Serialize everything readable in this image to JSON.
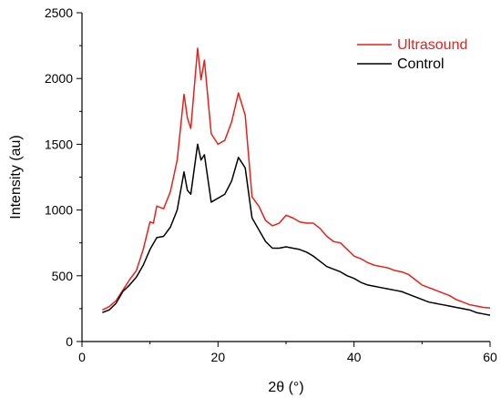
{
  "chart_data": {
    "type": "line",
    "xlabel": "2θ (°)",
    "ylabel": "Intensity (au)",
    "xlim": [
      0,
      60
    ],
    "ylim": [
      0,
      2500
    ],
    "x_ticks": [
      "0",
      "20",
      "40",
      "60"
    ],
    "y_ticks": [
      "0",
      "500",
      "1000",
      "1500",
      "2000",
      "2500"
    ],
    "grid": false,
    "legend_position": "top-right",
    "series": [
      {
        "name": "Ultrasound",
        "color": "#e8201a",
        "points": [
          [
            3,
            240
          ],
          [
            4,
            265
          ],
          [
            5,
            310
          ],
          [
            6,
            390
          ],
          [
            7,
            470
          ],
          [
            8,
            540
          ],
          [
            9,
            700
          ],
          [
            10,
            910
          ],
          [
            10.5,
            900
          ],
          [
            11,
            1030
          ],
          [
            12,
            1010
          ],
          [
            13,
            1140
          ],
          [
            14,
            1380
          ],
          [
            15,
            1880
          ],
          [
            15.5,
            1700
          ],
          [
            16,
            1620
          ],
          [
            17,
            2230
          ],
          [
            17.5,
            1990
          ],
          [
            18,
            2140
          ],
          [
            19,
            1580
          ],
          [
            20,
            1500
          ],
          [
            21,
            1530
          ],
          [
            22,
            1670
          ],
          [
            23,
            1890
          ],
          [
            24,
            1720
          ],
          [
            25,
            1100
          ],
          [
            26,
            1030
          ],
          [
            27,
            920
          ],
          [
            28,
            880
          ],
          [
            29,
            900
          ],
          [
            30,
            960
          ],
          [
            31,
            940
          ],
          [
            32,
            910
          ],
          [
            33,
            900
          ],
          [
            34,
            900
          ],
          [
            35,
            860
          ],
          [
            36,
            800
          ],
          [
            37,
            760
          ],
          [
            38,
            750
          ],
          [
            39,
            700
          ],
          [
            40,
            650
          ],
          [
            41,
            630
          ],
          [
            42,
            600
          ],
          [
            43,
            580
          ],
          [
            44,
            570
          ],
          [
            45,
            560
          ],
          [
            46,
            540
          ],
          [
            47,
            530
          ],
          [
            48,
            510
          ],
          [
            49,
            470
          ],
          [
            50,
            430
          ],
          [
            51,
            410
          ],
          [
            52,
            390
          ],
          [
            53,
            370
          ],
          [
            54,
            350
          ],
          [
            55,
            320
          ],
          [
            56,
            300
          ],
          [
            57,
            280
          ],
          [
            58,
            270
          ],
          [
            59,
            260
          ],
          [
            60,
            255
          ]
        ]
      },
      {
        "name": "Control",
        "color": "#000000",
        "points": [
          [
            3,
            220
          ],
          [
            4,
            240
          ],
          [
            5,
            290
          ],
          [
            6,
            380
          ],
          [
            7,
            430
          ],
          [
            8,
            490
          ],
          [
            9,
            580
          ],
          [
            10,
            700
          ],
          [
            11,
            790
          ],
          [
            12,
            800
          ],
          [
            13,
            870
          ],
          [
            14,
            1000
          ],
          [
            15,
            1290
          ],
          [
            15.5,
            1150
          ],
          [
            16,
            1120
          ],
          [
            17,
            1500
          ],
          [
            17.5,
            1380
          ],
          [
            18,
            1420
          ],
          [
            19,
            1060
          ],
          [
            20,
            1090
          ],
          [
            21,
            1120
          ],
          [
            22,
            1220
          ],
          [
            23,
            1400
          ],
          [
            24,
            1320
          ],
          [
            25,
            940
          ],
          [
            26,
            850
          ],
          [
            27,
            760
          ],
          [
            28,
            710
          ],
          [
            29,
            710
          ],
          [
            30,
            720
          ],
          [
            31,
            710
          ],
          [
            32,
            700
          ],
          [
            33,
            680
          ],
          [
            34,
            650
          ],
          [
            35,
            610
          ],
          [
            36,
            570
          ],
          [
            37,
            550
          ],
          [
            38,
            530
          ],
          [
            39,
            500
          ],
          [
            40,
            480
          ],
          [
            41,
            450
          ],
          [
            42,
            430
          ],
          [
            43,
            420
          ],
          [
            44,
            410
          ],
          [
            45,
            400
          ],
          [
            46,
            390
          ],
          [
            47,
            380
          ],
          [
            48,
            360
          ],
          [
            49,
            340
          ],
          [
            50,
            320
          ],
          [
            51,
            300
          ],
          [
            52,
            290
          ],
          [
            53,
            280
          ],
          [
            54,
            270
          ],
          [
            55,
            260
          ],
          [
            56,
            250
          ],
          [
            57,
            240
          ],
          [
            58,
            220
          ],
          [
            59,
            210
          ],
          [
            60,
            200
          ]
        ]
      }
    ]
  }
}
